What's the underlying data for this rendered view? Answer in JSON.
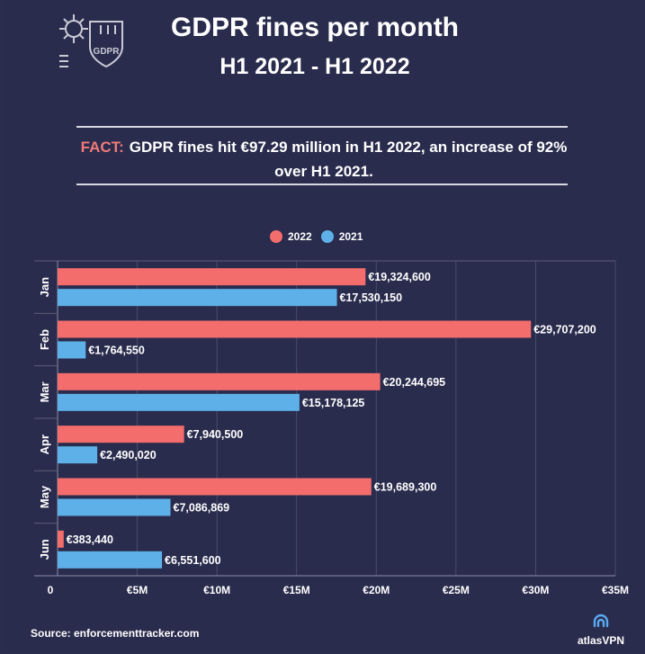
{
  "header": {
    "badge_text": "GDPR",
    "title": "GDPR fines per month",
    "subtitle": "H1 2021 - H1 2022"
  },
  "fact": {
    "label": "FACT:",
    "text": "GDPR fines hit €97.29 million in H1 2022, an increase of 92% over H1 2021."
  },
  "footer": {
    "source": "Source: enforcementtracker.com",
    "brand": "atlasVPN"
  },
  "colors": {
    "series_2022": "#f46d6d",
    "series_2021": "#5eb1e8",
    "background": "#2a2c4d",
    "grid": "#4a4c6b"
  },
  "chart_data": {
    "type": "bar",
    "orientation": "horizontal",
    "categories": [
      "Jan",
      "Feb",
      "Mar",
      "Apr",
      "May",
      "Jun"
    ],
    "series": [
      {
        "name": "2022",
        "values": [
          19324600,
          29707200,
          20244695,
          7940500,
          19689300,
          383440
        ],
        "labels": [
          "€19,324,600",
          "€29,707,200",
          "€20,244,695",
          "€7,940,500",
          "€19,689,300",
          "€383,440"
        ]
      },
      {
        "name": "2021",
        "values": [
          17530150,
          1764550,
          15178125,
          2490020,
          7086869,
          6551600
        ],
        "labels": [
          "€17,530,150",
          "€1,764,550",
          "€15,178,125",
          "€2,490,020",
          "€7,086,869",
          "€6,551,600"
        ]
      }
    ],
    "xlim": [
      0,
      35000000
    ],
    "xticks": [
      0,
      5000000,
      10000000,
      15000000,
      20000000,
      25000000,
      30000000,
      35000000
    ],
    "xtick_labels": [
      "0",
      "€5M",
      "€10M",
      "€15M",
      "€20M",
      "€25M",
      "€30M",
      "€35M"
    ],
    "grid": true,
    "legend_position": "top-center"
  }
}
